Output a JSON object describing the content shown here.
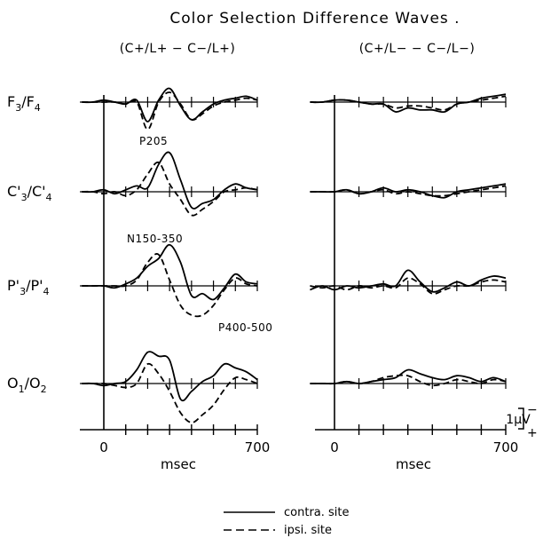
{
  "title": "Color Selection Difference Waves .",
  "panels": [
    {
      "header": "(C+/L+  −  C−/L+)",
      "x_start": "0",
      "x_end": "700",
      "xlabel": "msec"
    },
    {
      "header": "(C+/L−  −  C−/L−)",
      "x_start": "0",
      "x_end": "700",
      "xlabel": "msec"
    }
  ],
  "rows": [
    {
      "site_a": "F",
      "sub_a": "3",
      "site_b": "F",
      "sub_b": "4",
      "prime": false
    },
    {
      "site_a": "C",
      "sub_a": "3",
      "site_b": "C",
      "sub_b": "4",
      "prime": true
    },
    {
      "site_a": "P",
      "sub_a": "3",
      "site_b": "P",
      "sub_b": "4",
      "prime": true
    },
    {
      "site_a": "O",
      "sub_a": "1",
      "site_b": "O",
      "sub_b": "2",
      "prime": false
    }
  ],
  "annotations": {
    "p205": "P205",
    "n150": "N150-350",
    "p400": "P400-500"
  },
  "scale": {
    "label": "1µV",
    "minus": "−",
    "plus": "+"
  },
  "legend": {
    "contra": "contra. site",
    "ipsi": "ipsi. site"
  },
  "chart_data": {
    "type": "line",
    "title": "Color Selection Difference Waves .",
    "x_unit": "msec",
    "x_range": [
      -100,
      700
    ],
    "x_ticks": [
      0,
      700
    ],
    "y_unit": "µV",
    "y_scale_bar": 1,
    "polarity": "negative up",
    "series_styles": {
      "contra": "solid",
      "ipsi": "dashed"
    },
    "x": [
      -100,
      -50,
      0,
      50,
      100,
      150,
      200,
      250,
      300,
      350,
      400,
      450,
      500,
      550,
      600,
      650,
      700
    ],
    "panels": [
      {
        "condition": "(C+/L+ - C-/L+)",
        "rows": [
          {
            "site": "F3/F4",
            "contra": [
              0,
              0,
              0.1,
              0,
              -0.1,
              0.1,
              -1.0,
              0.1,
              0.7,
              -0.2,
              -0.9,
              -0.5,
              -0.1,
              0.1,
              0.2,
              0.3,
              0.1
            ],
            "ipsi": [
              0,
              0,
              0,
              0,
              -0.1,
              0,
              -1.4,
              0,
              0.5,
              -0.1,
              -0.9,
              -0.6,
              -0.2,
              0,
              0.1,
              0.2,
              0.1
            ]
          },
          {
            "site": "C'3/C'4",
            "contra": [
              0,
              0,
              0.1,
              -0.1,
              0.1,
              0.3,
              0.2,
              1.4,
              2.0,
              0.6,
              -0.8,
              -0.6,
              -0.4,
              0.1,
              0.4,
              0.2,
              0.1
            ],
            "ipsi": [
              0,
              0,
              -0.1,
              0,
              -0.2,
              0.1,
              0.9,
              1.5,
              0.4,
              -0.4,
              -1.2,
              -0.9,
              -0.5,
              0,
              0.1,
              0.2,
              0.1
            ]
          },
          {
            "site": "P'3/P'4",
            "contra": [
              0,
              0,
              0,
              -0.1,
              0.1,
              0.4,
              1.0,
              1.4,
              2.1,
              1.2,
              -0.5,
              -0.4,
              -0.7,
              -0.1,
              0.6,
              0.2,
              0.1
            ],
            "ipsi": [
              0,
              0,
              0,
              0,
              0,
              0.3,
              1.2,
              1.6,
              0.3,
              -1.0,
              -1.5,
              -1.5,
              -1.0,
              -0.2,
              0.4,
              0.1,
              0
            ]
          },
          {
            "site": "O1/O2",
            "contra": [
              0,
              0,
              -0.1,
              0,
              0.1,
              0.7,
              1.6,
              1.4,
              1.2,
              -0.8,
              -0.4,
              0.1,
              0.4,
              1.0,
              0.8,
              0.6,
              0.2
            ],
            "ipsi": [
              0,
              0,
              0,
              -0.1,
              -0.2,
              0,
              1.0,
              0.5,
              -0.4,
              -1.5,
              -2.0,
              -1.6,
              -1.1,
              -0.3,
              0.3,
              0.2,
              0
            ]
          }
        ]
      },
      {
        "condition": "(C+/L- - C-/L-)",
        "rows": [
          {
            "site": "F3/F4",
            "contra": [
              0,
              0,
              0.1,
              0.1,
              0,
              -0.1,
              -0.1,
              -0.5,
              -0.3,
              -0.4,
              -0.4,
              -0.5,
              -0.1,
              0,
              0.2,
              0.3,
              0.4
            ],
            "ipsi": [
              0,
              0,
              0.1,
              0.1,
              0,
              -0.1,
              -0.1,
              -0.3,
              -0.2,
              -0.2,
              -0.3,
              -0.4,
              -0.1,
              0,
              0.1,
              0.2,
              0.3
            ]
          },
          {
            "site": "C'3/C'4",
            "contra": [
              0,
              0,
              0,
              0.1,
              -0.1,
              0,
              0.2,
              0,
              0.1,
              0,
              -0.2,
              -0.3,
              0,
              0.1,
              0.2,
              0.3,
              0.4
            ],
            "ipsi": [
              0,
              0,
              0,
              0.1,
              -0.1,
              0,
              0.1,
              -0.1,
              0,
              -0.1,
              -0.2,
              -0.2,
              -0.1,
              0,
              0.1,
              0.2,
              0.3
            ]
          },
          {
            "site": "P'3/P'4",
            "contra": [
              -0.2,
              0,
              -0.2,
              0,
              -0.1,
              0,
              0.1,
              0,
              0.8,
              0.2,
              -0.3,
              -0.1,
              0.2,
              0,
              0.3,
              0.5,
              0.4
            ],
            "ipsi": [
              0,
              -0.1,
              0,
              -0.2,
              0,
              -0.1,
              0,
              -0.1,
              0.4,
              0.1,
              -0.4,
              -0.2,
              0,
              0,
              0.2,
              0.3,
              0.2
            ]
          },
          {
            "site": "O1/O2",
            "contra": [
              0,
              0,
              0,
              0.1,
              0,
              0.1,
              0.2,
              0.3,
              0.7,
              0.5,
              0.3,
              0.2,
              0.4,
              0.3,
              0.1,
              0.3,
              0.1
            ],
            "ipsi": [
              0,
              0,
              0,
              0.1,
              0,
              0.1,
              0.3,
              0.4,
              0.4,
              0.1,
              -0.1,
              0,
              0.2,
              0.1,
              0,
              0.2,
              0.1
            ]
          }
        ]
      }
    ]
  }
}
